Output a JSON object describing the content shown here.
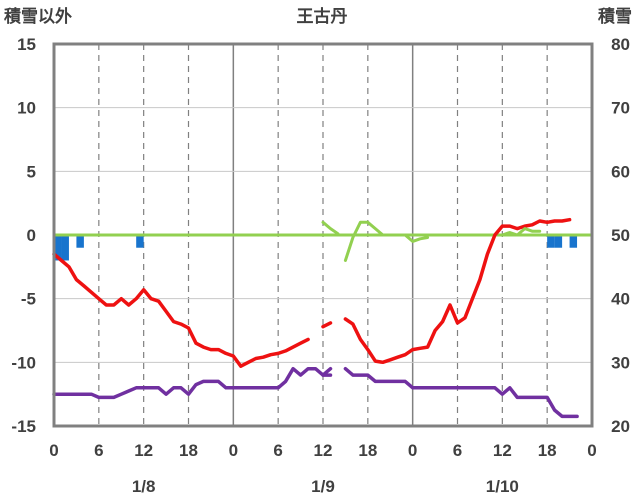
{
  "chart_data": {
    "type": "line",
    "title": "王古丹",
    "left_axis_label": "積雪以外",
    "right_axis_label": "積雪",
    "left_ylim": [
      -15,
      15
    ],
    "left_yticks": [
      15,
      10,
      5,
      0,
      -5,
      -10,
      -15
    ],
    "right_ylim": [
      20,
      80
    ],
    "right_yticks": [
      80,
      70,
      60,
      50,
      40,
      30,
      20
    ],
    "x_hours_range": [
      0,
      72
    ],
    "x_ticks": [
      {
        "h": 0,
        "label": "0"
      },
      {
        "h": 6,
        "label": "6"
      },
      {
        "h": 12,
        "label": "12"
      },
      {
        "h": 18,
        "label": "18"
      },
      {
        "h": 24,
        "label": "0"
      },
      {
        "h": 30,
        "label": "6"
      },
      {
        "h": 36,
        "label": "12"
      },
      {
        "h": 42,
        "label": "18"
      },
      {
        "h": 48,
        "label": "0"
      },
      {
        "h": 54,
        "label": "6"
      },
      {
        "h": 60,
        "label": "12"
      },
      {
        "h": 66,
        "label": "18"
      },
      {
        "h": 72,
        "label": "0"
      }
    ],
    "day_labels": [
      {
        "h": 12,
        "label": "1/8"
      },
      {
        "h": 36,
        "label": "1/9"
      },
      {
        "h": 60,
        "label": "1/10"
      }
    ],
    "grid": true,
    "colors": {
      "temperature": "#ee1111",
      "snow_depth": "#7030a0",
      "precipitation": "#1874cd",
      "snowfall": "#92d050",
      "zero_line": "#92d050",
      "frame": "#808080"
    },
    "series": [
      {
        "key": "temperature",
        "axis": "left",
        "segments": [
          [
            [
              0,
              -1.5
            ],
            [
              1,
              -2
            ],
            [
              2,
              -2.5
            ],
            [
              3,
              -3.5
            ],
            [
              4,
              -4
            ],
            [
              5,
              -4.5
            ],
            [
              6,
              -5
            ],
            [
              7,
              -5.5
            ],
            [
              8,
              -5.5
            ],
            [
              9,
              -5
            ],
            [
              10,
              -5.5
            ],
            [
              11,
              -5
            ],
            [
              12,
              -4.3
            ],
            [
              13,
              -5
            ],
            [
              14,
              -5.2
            ],
            [
              15,
              -6
            ],
            [
              16,
              -6.8
            ],
            [
              17,
              -7
            ],
            [
              18,
              -7.3
            ],
            [
              19,
              -8.5
            ],
            [
              20,
              -8.8
            ],
            [
              21,
              -9
            ],
            [
              22,
              -9
            ],
            [
              23,
              -9.3
            ],
            [
              24,
              -9.5
            ],
            [
              25,
              -10.3
            ],
            [
              26,
              -10
            ],
            [
              27,
              -9.7
            ],
            [
              28,
              -9.6
            ],
            [
              29,
              -9.4
            ],
            [
              30,
              -9.3
            ],
            [
              31,
              -9.1
            ],
            [
              32,
              -8.8
            ],
            [
              33,
              -8.5
            ],
            [
              34,
              -8.2
            ]
          ],
          [
            [
              36,
              -7.2
            ],
            [
              37,
              -6.9
            ]
          ],
          [
            [
              39,
              -6.6
            ],
            [
              40,
              -7
            ],
            [
              41,
              -8.2
            ],
            [
              42,
              -9
            ],
            [
              43,
              -9.9
            ],
            [
              44,
              -10
            ],
            [
              45,
              -9.8
            ],
            [
              46,
              -9.6
            ],
            [
              47,
              -9.4
            ],
            [
              48,
              -9
            ],
            [
              49,
              -8.9
            ],
            [
              50,
              -8.8
            ],
            [
              51,
              -7.5
            ],
            [
              52,
              -6.8
            ],
            [
              53,
              -5.5
            ],
            [
              54,
              -6.9
            ],
            [
              55,
              -6.5
            ],
            [
              56,
              -5
            ],
            [
              57,
              -3.5
            ],
            [
              58,
              -1.5
            ],
            [
              59,
              0
            ],
            [
              60,
              0.7
            ],
            [
              61,
              0.7
            ],
            [
              62,
              0.5
            ],
            [
              63,
              0.7
            ],
            [
              64,
              0.8
            ],
            [
              65,
              1.1
            ],
            [
              66,
              1
            ],
            [
              67,
              1.1
            ],
            [
              68,
              1.1
            ],
            [
              69,
              1.2
            ]
          ]
        ]
      },
      {
        "key": "snow_depth",
        "axis": "right",
        "segments": [
          [
            [
              0,
              25
            ],
            [
              1,
              25
            ],
            [
              2,
              25
            ],
            [
              3,
              25
            ],
            [
              4,
              25
            ],
            [
              5,
              25
            ],
            [
              6,
              24.5
            ],
            [
              7,
              24.5
            ],
            [
              8,
              24.5
            ],
            [
              9,
              25
            ],
            [
              10,
              25.5
            ],
            [
              11,
              26
            ],
            [
              12,
              26
            ],
            [
              13,
              26
            ],
            [
              14,
              26
            ],
            [
              15,
              25
            ],
            [
              16,
              26
            ],
            [
              17,
              26
            ],
            [
              18,
              25
            ],
            [
              19,
              26.5
            ],
            [
              20,
              27
            ],
            [
              21,
              27
            ],
            [
              22,
              27
            ],
            [
              23,
              26
            ],
            [
              24,
              26
            ],
            [
              25,
              26
            ],
            [
              26,
              26
            ],
            [
              27,
              26
            ],
            [
              28,
              26
            ],
            [
              29,
              26
            ],
            [
              30,
              26
            ],
            [
              31,
              27
            ],
            [
              32,
              29
            ],
            [
              33,
              28
            ],
            [
              34,
              29
            ],
            [
              35,
              29
            ],
            [
              36,
              28
            ],
            [
              37,
              28
            ]
          ],
          [
            [
              36,
              28
            ],
            [
              37,
              29
            ]
          ],
          [
            [
              39,
              29
            ],
            [
              40,
              28
            ],
            [
              41,
              28
            ],
            [
              42,
              28
            ],
            [
              43,
              27
            ],
            [
              44,
              27
            ],
            [
              45,
              27
            ],
            [
              46,
              27
            ],
            [
              47,
              27
            ],
            [
              48,
              26
            ],
            [
              49,
              26
            ],
            [
              50,
              26
            ],
            [
              51,
              26
            ],
            [
              52,
              26
            ],
            [
              53,
              26
            ],
            [
              54,
              26
            ],
            [
              55,
              26
            ],
            [
              56,
              26
            ],
            [
              57,
              26
            ],
            [
              58,
              26
            ],
            [
              59,
              26
            ],
            [
              60,
              25
            ],
            [
              61,
              26
            ],
            [
              62,
              24.5
            ],
            [
              63,
              24.5
            ],
            [
              64,
              24.5
            ],
            [
              65,
              24.5
            ],
            [
              66,
              24.5
            ],
            [
              67,
              22.5
            ],
            [
              68,
              21.5
            ],
            [
              69,
              21.5
            ],
            [
              70,
              21.5
            ]
          ]
        ]
      },
      {
        "key": "snowfall",
        "axis": "left",
        "segments": [
          [
            [
              36,
              1
            ],
            [
              37,
              0.5
            ],
            [
              38,
              0.1
            ]
          ],
          [
            [
              39,
              -2
            ],
            [
              40,
              -0.2
            ],
            [
              41,
              1
            ],
            [
              42,
              1
            ],
            [
              43,
              0.5
            ],
            [
              44,
              0
            ],
            [
              45,
              0
            ],
            [
              46,
              0
            ],
            [
              47,
              0
            ],
            [
              48,
              -0.5
            ],
            [
              49,
              -0.3
            ],
            [
              50,
              -0.2
            ]
          ],
          [
            [
              60,
              0
            ],
            [
              61,
              0.2
            ],
            [
              62,
              0
            ],
            [
              63,
              0.5
            ],
            [
              64,
              0.3
            ],
            [
              65,
              0.3
            ]
          ]
        ]
      }
    ],
    "bars": {
      "key": "precipitation",
      "axis": "left",
      "values": [
        {
          "h": 0.5,
          "v": -2.0
        },
        {
          "h": 1.5,
          "v": -2.0
        },
        {
          "h": 3.5,
          "v": -1.0
        },
        {
          "h": 11.5,
          "v": -1.0
        },
        {
          "h": 66.5,
          "v": -1.0
        },
        {
          "h": 67.5,
          "v": -1.0
        },
        {
          "h": 69.5,
          "v": -1.0
        }
      ]
    }
  }
}
